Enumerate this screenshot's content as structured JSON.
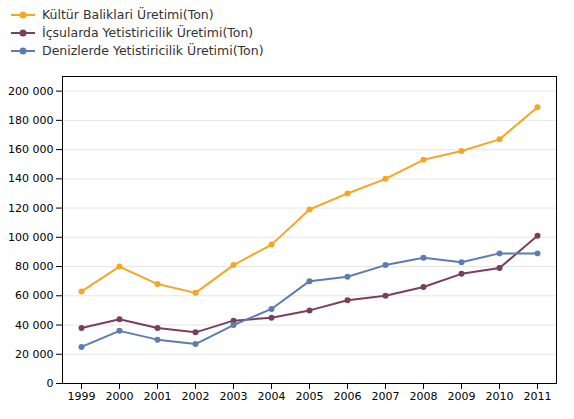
{
  "chart_data": {
    "type": "line",
    "x": [
      1999,
      2000,
      2001,
      2002,
      2003,
      2004,
      2005,
      2006,
      2007,
      2008,
      2009,
      2010,
      2011
    ],
    "series": [
      {
        "name": "Kültür Baliklari Üretimi(Ton)",
        "color": "#F5A623",
        "values": [
          63000,
          80000,
          68000,
          62000,
          81000,
          95000,
          119000,
          130000,
          140000,
          153000,
          159000,
          167000,
          189000
        ]
      },
      {
        "name": "İçsularda Yetistiricilik Üretimi(Ton)",
        "color": "#7B3F5E",
        "values": [
          38000,
          44000,
          38000,
          35000,
          43000,
          45000,
          50000,
          57000,
          60000,
          66000,
          75000,
          79000,
          101000
        ]
      },
      {
        "name": "Denizlerde Yetistiricilik Üretimi(Ton)",
        "color": "#5B7DB1",
        "values": [
          25000,
          36000,
          30000,
          27000,
          40000,
          51000,
          70000,
          73000,
          81000,
          86000,
          83000,
          89000,
          89000
        ]
      }
    ],
    "xlim": [
      1998.5,
      2011.5
    ],
    "xticks": [
      1999,
      2000,
      2001,
      2002,
      2003,
      2004,
      2005,
      2006,
      2007,
      2008,
      2009,
      2010,
      2011
    ],
    "ylim": [
      0,
      210000
    ],
    "yticks": [
      0,
      {
        "value": 20000,
        "label": "20 000"
      },
      {
        "value": 40000,
        "label": "40 000"
      },
      {
        "value": 60000,
        "label": "60 000"
      },
      {
        "value": 80000,
        "label": "80 000"
      },
      {
        "value": 100000,
        "label": "100 000"
      },
      {
        "value": 120000,
        "label": "120 000"
      },
      {
        "value": 140000,
        "label": "140 000"
      },
      {
        "value": 160000,
        "label": "160 000"
      },
      {
        "value": 180000,
        "label": "180 000"
      },
      {
        "value": 200000,
        "label": "200 000"
      }
    ],
    "grid": true,
    "legend": "upper left",
    "marker": "circle"
  }
}
